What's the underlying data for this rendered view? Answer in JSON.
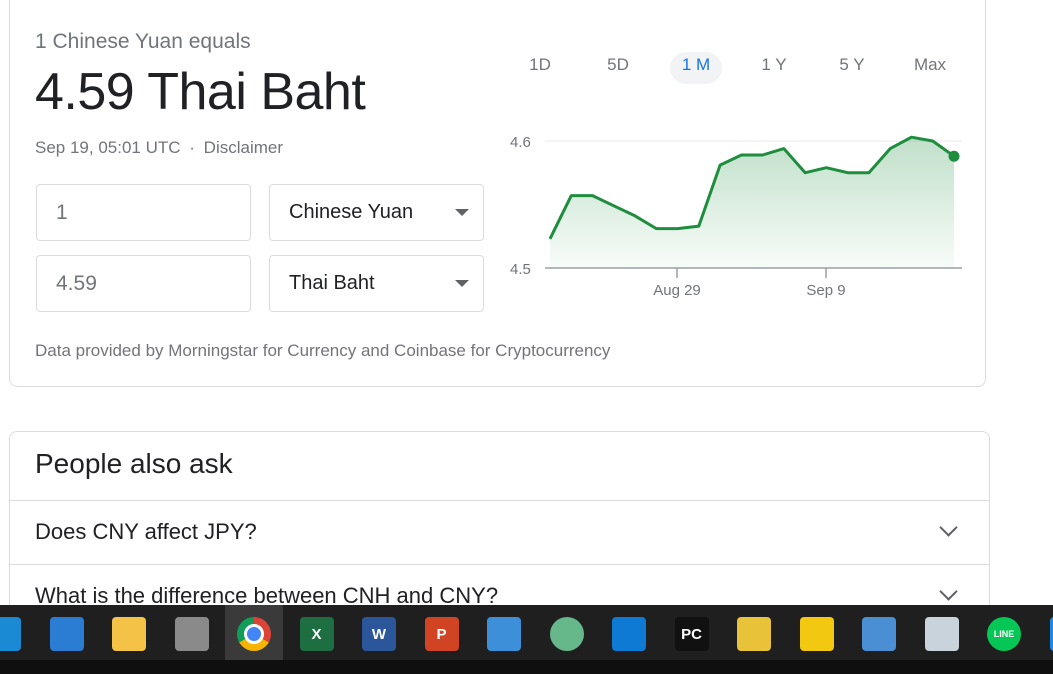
{
  "converter": {
    "equals_text": "1 Chinese Yuan equals",
    "result_text": "4.59 Thai Baht",
    "timestamp": "Sep 19, 05:01 UTC",
    "separator": "·",
    "disclaimer": "Disclaimer",
    "from_amount": "1",
    "from_currency": "Chinese Yuan",
    "to_amount": "4.59",
    "to_currency": "Thai Baht",
    "source_text": "Data provided by Morningstar for Currency and Coinbase for Cryptocurrency"
  },
  "ranges": [
    {
      "label": "1D",
      "active": false
    },
    {
      "label": "5D",
      "active": false
    },
    {
      "label": "1 M",
      "active": true
    },
    {
      "label": "1 Y",
      "active": false
    },
    {
      "label": "5 Y",
      "active": false
    },
    {
      "label": "Max",
      "active": false
    }
  ],
  "chart_data": {
    "type": "area",
    "color": "#1e8e3e",
    "y_ticks": [
      "4.6",
      "4.5"
    ],
    "ylim": [
      4.5,
      4.6
    ],
    "x_ticks": [
      "Aug 29",
      "Sep 9"
    ],
    "values": [
      4.523,
      4.557,
      4.557,
      4.549,
      4.541,
      4.531,
      4.531,
      4.533,
      4.581,
      4.589,
      4.589,
      4.594,
      4.575,
      4.579,
      4.575,
      4.575,
      4.594,
      4.603,
      4.6,
      4.588
    ]
  },
  "people_also_ask": {
    "title": "People also ask",
    "questions": [
      "Does CNY affect JPY?",
      "What is the difference between CNH and CNY?"
    ]
  },
  "taskbar": {
    "apps": [
      {
        "name": "edge-icon",
        "color": "#1a8ad4",
        "letter": ""
      },
      {
        "name": "mail-icon",
        "color": "#2b7cd3",
        "letter": ""
      },
      {
        "name": "file-explorer-icon",
        "color": "#f3c247",
        "letter": ""
      },
      {
        "name": "calculator-icon",
        "color": "#8a8a8a",
        "letter": ""
      },
      {
        "name": "chrome-icon",
        "color": "#db4437",
        "letter": ""
      },
      {
        "name": "excel-icon",
        "color": "#1d6f42",
        "letter": "X"
      },
      {
        "name": "word-icon",
        "color": "#2b579a",
        "letter": "W"
      },
      {
        "name": "powerpoint-icon",
        "color": "#d04423",
        "letter": "P"
      },
      {
        "name": "app-icon",
        "color": "#3c8fd8",
        "letter": ""
      },
      {
        "name": "atom-icon",
        "color": "#66b88a",
        "letter": ""
      },
      {
        "name": "vscode-icon",
        "color": "#0e7ad3",
        "letter": ""
      },
      {
        "name": "pycharm-icon",
        "color": "#111111",
        "letter": "PC"
      },
      {
        "name": "tool-icon",
        "color": "#e8c33a",
        "letter": ""
      },
      {
        "name": "powerbi-icon",
        "color": "#f2c811",
        "letter": ""
      },
      {
        "name": "cloud-icon",
        "color": "#4a8fd4",
        "letter": ""
      },
      {
        "name": "python-icon",
        "color": "#c9d3dc",
        "letter": ""
      },
      {
        "name": "line-icon",
        "color": "#06c755",
        "letter": "LINE"
      },
      {
        "name": "photos-icon",
        "color": "#1e88e5",
        "letter": ""
      }
    ]
  }
}
